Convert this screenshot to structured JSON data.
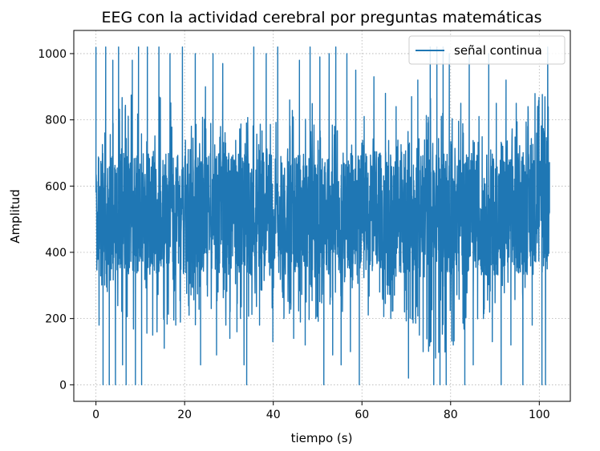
{
  "chart_data": {
    "type": "line",
    "title": "EEG con la actividad cerebral por preguntas matemáticas",
    "xlabel": "tiempo (s)",
    "ylabel": "Amplitud",
    "xlim": [
      -5,
      107
    ],
    "ylim": [
      -50,
      1070
    ],
    "xticks": [
      0,
      20,
      40,
      60,
      80,
      100
    ],
    "yticks": [
      0,
      200,
      400,
      600,
      800,
      1000
    ],
    "xtick_labels": [
      "0",
      "20",
      "40",
      "60",
      "80",
      "100"
    ],
    "ytick_labels": [
      "0",
      "200",
      "400",
      "600",
      "800",
      "1000"
    ],
    "grid": true,
    "grid_style": "dotted",
    "legend_position": "top-right",
    "series": [
      {
        "name": "señal continua",
        "color": "#1f77b4",
        "x_range": [
          0,
          102.3
        ],
        "y_range": [
          0,
          1023
        ],
        "typical_band": [
          330,
          700
        ],
        "mean": 512,
        "envelope": [
          {
            "x": 0,
            "low": 320,
            "high": 700
          },
          {
            "x": 5,
            "low": 150,
            "high": 870
          },
          {
            "x": 10,
            "low": 120,
            "high": 900
          },
          {
            "x": 20,
            "low": 170,
            "high": 830
          },
          {
            "x": 30,
            "low": 210,
            "high": 800
          },
          {
            "x": 40,
            "low": 190,
            "high": 820
          },
          {
            "x": 50,
            "low": 180,
            "high": 860
          },
          {
            "x": 60,
            "low": 210,
            "high": 740
          },
          {
            "x": 70,
            "low": 180,
            "high": 760
          },
          {
            "x": 77,
            "low": 60,
            "high": 930
          },
          {
            "x": 85,
            "low": 200,
            "high": 750
          },
          {
            "x": 95,
            "low": 170,
            "high": 800
          },
          {
            "x": 102.3,
            "low": 520,
            "high": 1000
          }
        ],
        "spikes": [
          {
            "x": 0,
            "y": 1020
          },
          {
            "x": 0.7,
            "y": 180
          },
          {
            "x": 1.6,
            "y": 0
          },
          {
            "x": 2.2,
            "y": 1020
          },
          {
            "x": 3.0,
            "y": 0
          },
          {
            "x": 3.8,
            "y": 980
          },
          {
            "x": 4.4,
            "y": 0
          },
          {
            "x": 5.1,
            "y": 1020
          },
          {
            "x": 6.0,
            "y": 60
          },
          {
            "x": 6.8,
            "y": 0
          },
          {
            "x": 8.2,
            "y": 980
          },
          {
            "x": 8.9,
            "y": 0
          },
          {
            "x": 9.6,
            "y": 1020
          },
          {
            "x": 10.3,
            "y": 0
          },
          {
            "x": 11.6,
            "y": 1020
          },
          {
            "x": 12.8,
            "y": 150
          },
          {
            "x": 14.2,
            "y": 1020
          },
          {
            "x": 15.4,
            "y": 110
          },
          {
            "x": 16.7,
            "y": 1000
          },
          {
            "x": 18.0,
            "y": 180
          },
          {
            "x": 19.5,
            "y": 1020
          },
          {
            "x": 21.0,
            "y": 210
          },
          {
            "x": 22.4,
            "y": 1000
          },
          {
            "x": 23.6,
            "y": 60
          },
          {
            "x": 24.7,
            "y": 900
          },
          {
            "x": 26.4,
            "y": 1000
          },
          {
            "x": 27.2,
            "y": 90
          },
          {
            "x": 28.6,
            "y": 970
          },
          {
            "x": 29.3,
            "y": 180
          },
          {
            "x": 30.2,
            "y": 140
          },
          {
            "x": 31.8,
            "y": 160
          },
          {
            "x": 32.6,
            "y": 200
          },
          {
            "x": 33.4,
            "y": 60
          },
          {
            "x": 34.0,
            "y": 0
          },
          {
            "x": 35.6,
            "y": 1020
          },
          {
            "x": 36.9,
            "y": 180
          },
          {
            "x": 38.4,
            "y": 1000
          },
          {
            "x": 39.9,
            "y": 130
          },
          {
            "x": 41.0,
            "y": 1020
          },
          {
            "x": 42.4,
            "y": 200
          },
          {
            "x": 43.7,
            "y": 860
          },
          {
            "x": 44.6,
            "y": 140
          },
          {
            "x": 45.9,
            "y": 980
          },
          {
            "x": 47.2,
            "y": 120
          },
          {
            "x": 48.3,
            "y": 1020
          },
          {
            "x": 49.6,
            "y": 200
          },
          {
            "x": 50.5,
            "y": 990
          },
          {
            "x": 51.4,
            "y": 0
          },
          {
            "x": 52.6,
            "y": 1000
          },
          {
            "x": 53.4,
            "y": 90
          },
          {
            "x": 54.1,
            "y": 1020
          },
          {
            "x": 55.3,
            "y": 60
          },
          {
            "x": 56.6,
            "y": 1000
          },
          {
            "x": 57.4,
            "y": 100
          },
          {
            "x": 58.6,
            "y": 950
          },
          {
            "x": 59.4,
            "y": 0
          },
          {
            "x": 60.5,
            "y": 810
          },
          {
            "x": 62.7,
            "y": 930
          },
          {
            "x": 64.0,
            "y": 280
          },
          {
            "x": 65.3,
            "y": 880
          },
          {
            "x": 66.5,
            "y": 200
          },
          {
            "x": 67.7,
            "y": 840
          },
          {
            "x": 69.6,
            "y": 220
          },
          {
            "x": 70.5,
            "y": 20
          },
          {
            "x": 71.2,
            "y": 870
          },
          {
            "x": 72.6,
            "y": 920
          },
          {
            "x": 73.8,
            "y": 100
          },
          {
            "x": 75.4,
            "y": 1020
          },
          {
            "x": 76.2,
            "y": 0
          },
          {
            "x": 76.9,
            "y": 1020
          },
          {
            "x": 77.6,
            "y": 0
          },
          {
            "x": 78.3,
            "y": 1020
          },
          {
            "x": 79.0,
            "y": 0
          },
          {
            "x": 79.7,
            "y": 1000
          },
          {
            "x": 80.6,
            "y": 120
          },
          {
            "x": 82.3,
            "y": 850
          },
          {
            "x": 83.2,
            "y": 0
          },
          {
            "x": 84.2,
            "y": 1020
          },
          {
            "x": 85.1,
            "y": 60
          },
          {
            "x": 86.4,
            "y": 810
          },
          {
            "x": 87.4,
            "y": 200
          },
          {
            "x": 88.6,
            "y": 1000
          },
          {
            "x": 89.4,
            "y": 130
          },
          {
            "x": 90.3,
            "y": 850
          },
          {
            "x": 91.4,
            "y": 0
          },
          {
            "x": 92.5,
            "y": 920
          },
          {
            "x": 93.6,
            "y": 120
          },
          {
            "x": 94.8,
            "y": 850
          },
          {
            "x": 96.3,
            "y": 0
          },
          {
            "x": 97.4,
            "y": 780
          },
          {
            "x": 98.4,
            "y": 180
          },
          {
            "x": 99.4,
            "y": 760
          },
          {
            "x": 100.6,
            "y": 0
          },
          {
            "x": 101.4,
            "y": 0
          },
          {
            "x": 101.9,
            "y": 1020
          },
          {
            "x": 102.3,
            "y": 520
          }
        ]
      }
    ]
  }
}
